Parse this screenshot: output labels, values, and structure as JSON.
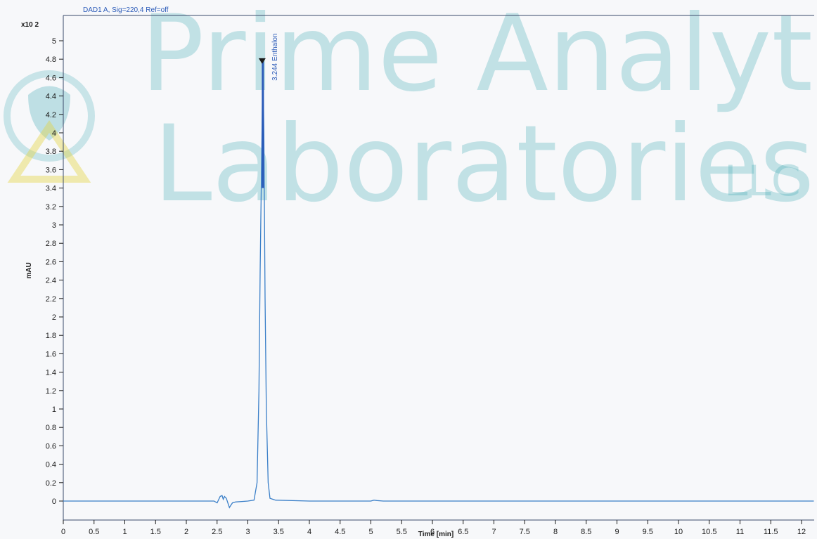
{
  "watermark": {
    "line1": "Prime Analytical",
    "line2": "Laboratories,",
    "line3": "LLC"
  },
  "chart_data": {
    "type": "line",
    "signal_label": "DAD1 A, Sig=220,4 Ref=off",
    "y_multiplier": "x10 2",
    "ylabel": "mAU",
    "xlabel": "Time [min]",
    "xlim": [
      0,
      12.2
    ],
    "ylim": [
      -0.2,
      5.2
    ],
    "x_ticks": [
      0,
      0.5,
      1,
      1.5,
      2,
      2.5,
      3,
      3.5,
      4,
      4.5,
      5,
      5.5,
      6,
      6.5,
      7,
      7.5,
      8,
      8.5,
      9,
      9.5,
      10,
      10.5,
      11,
      11.5,
      12
    ],
    "x_tick_labels": [
      "0",
      "0.5",
      "1",
      "1.5",
      "2",
      "2.5",
      "3",
      "3.5",
      "4",
      "4.5",
      "5",
      "5.5",
      "6",
      "6.5",
      "7",
      "7.5",
      "8",
      "8.5",
      "9",
      "9.5",
      "10",
      "10.5",
      "11",
      "11.5",
      "12"
    ],
    "y_ticks": [
      0,
      0.2,
      0.4,
      0.6,
      0.8,
      1,
      1.2,
      1.4,
      1.6,
      1.8,
      2,
      2.2,
      2.4,
      2.6,
      2.8,
      3,
      3.2,
      3.4,
      3.6,
      3.8,
      4,
      4.2,
      4.4,
      4.6,
      4.8,
      5
    ],
    "y_tick_labels": [
      "0",
      "0.2",
      "0.4",
      "0.6",
      "0.8",
      "1",
      "1.2",
      "1.4",
      "1.6",
      "1.8",
      "2",
      "2.2",
      "2.4",
      "2.6",
      "2.8",
      "3",
      "3.2",
      "3.4",
      "3.6",
      "3.8",
      "4",
      "4.2",
      "4.4",
      "4.6",
      "4.8",
      "5"
    ],
    "series": [
      {
        "color": "#3a7fc8",
        "points": [
          [
            0,
            0
          ],
          [
            2.45,
            0
          ],
          [
            2.5,
            -0.02
          ],
          [
            2.55,
            0.05
          ],
          [
            2.58,
            0.06
          ],
          [
            2.6,
            0.02
          ],
          [
            2.62,
            0.05
          ],
          [
            2.65,
            0.03
          ],
          [
            2.68,
            -0.03
          ],
          [
            2.7,
            -0.07
          ],
          [
            2.72,
            -0.05
          ],
          [
            2.75,
            -0.02
          ],
          [
            2.8,
            -0.01
          ],
          [
            3.0,
            0
          ],
          [
            3.1,
            0.01
          ],
          [
            3.15,
            0.2
          ],
          [
            3.18,
            1.2
          ],
          [
            3.2,
            2.5
          ],
          [
            3.23,
            4.0
          ],
          [
            3.244,
            4.78
          ],
          [
            3.26,
            4.0
          ],
          [
            3.28,
            2.2
          ],
          [
            3.3,
            1.0
          ],
          [
            3.33,
            0.2
          ],
          [
            3.36,
            0.03
          ],
          [
            3.45,
            0.01
          ],
          [
            4.0,
            0
          ],
          [
            5.0,
            0
          ],
          [
            5.05,
            0.01
          ],
          [
            5.1,
            0.005
          ],
          [
            5.2,
            0
          ],
          [
            12.2,
            0
          ]
        ]
      }
    ],
    "peaks": [
      {
        "rt": 3.244,
        "height": 4.78,
        "label": "3.244 Enthalon"
      }
    ]
  }
}
